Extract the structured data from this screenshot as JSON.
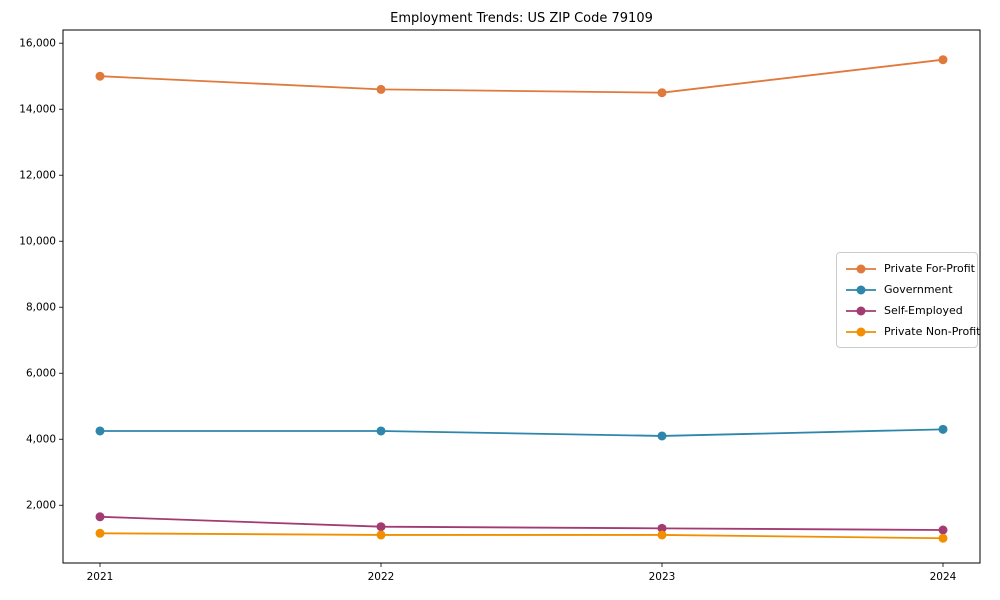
{
  "chart_data": {
    "type": "line",
    "title": "Employment Trends: US ZIP Code 79109",
    "x": [
      2021,
      2022,
      2023,
      2024
    ],
    "x_labels": [
      "2021",
      "2022",
      "2023",
      "2024"
    ],
    "series": [
      {
        "name": "Private For-Profit",
        "color": "#E0793C",
        "values": [
          15000,
          14600,
          14500,
          15500
        ]
      },
      {
        "name": "Government",
        "color": "#2E86AB",
        "values": [
          4250,
          4250,
          4100,
          4300
        ]
      },
      {
        "name": "Self-Employed",
        "color": "#A23B72",
        "values": [
          1650,
          1350,
          1300,
          1250
        ]
      },
      {
        "name": "Private Non-Profit",
        "color": "#F18F01",
        "values": [
          1150,
          1100,
          1100,
          1000
        ]
      }
    ],
    "ylim": [
      250,
      16400
    ],
    "yticks": [
      2000,
      4000,
      6000,
      8000,
      10000,
      12000,
      14000,
      16000
    ],
    "ytick_labels": [
      "2,000",
      "4,000",
      "6,000",
      "8,000",
      "10,000",
      "12,000",
      "14,000",
      "16,000"
    ],
    "xlabel": "",
    "ylabel": "",
    "grid": false,
    "legend_position": "center right",
    "marker": "circle",
    "axis_color": "#000000",
    "background_color": "#ffffff"
  }
}
